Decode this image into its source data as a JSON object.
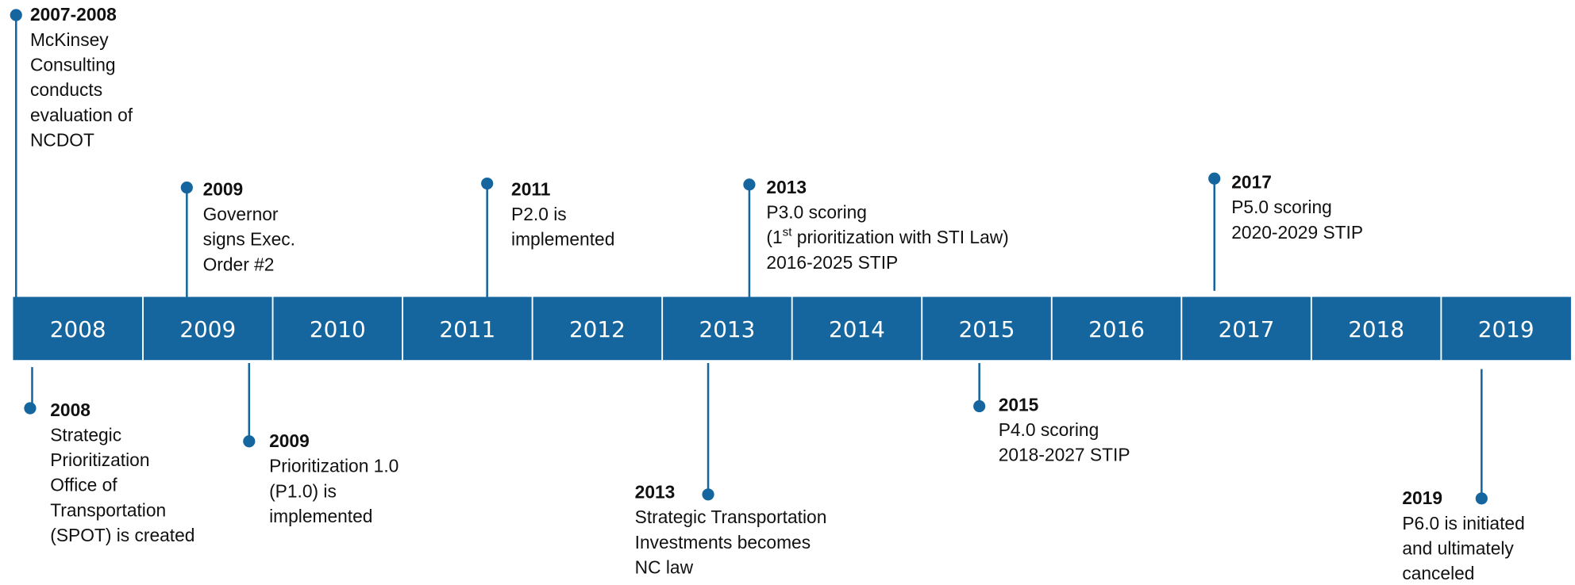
{
  "timeline": {
    "years": [
      "2008",
      "2009",
      "2010",
      "2011",
      "2012",
      "2013",
      "2014",
      "2015",
      "2016",
      "2017",
      "2018",
      "2019"
    ],
    "events": [
      {
        "year": "2007-2008",
        "lines": [
          "McKinsey",
          "Consulting",
          "conducts",
          "evaluation of",
          "NCDOT"
        ]
      },
      {
        "year": "2009",
        "lines": [
          "Governor",
          "signs Exec.",
          "Order #2"
        ]
      },
      {
        "year": "2011",
        "lines": [
          "P2.0 is",
          "implemented"
        ]
      },
      {
        "year": "2013",
        "lines": [
          "P3.0 scoring",
          [
            "(1",
            "st",
            " prioritization with STI Law)"
          ],
          "2016-2025 STIP"
        ]
      },
      {
        "year": "2017",
        "lines": [
          "P5.0 scoring",
          "2020-2029 STIP"
        ]
      },
      {
        "year": "2008",
        "lines": [
          "Strategic",
          "Prioritization",
          "Office of",
          "Transportation",
          "(SPOT) is created"
        ]
      },
      {
        "year": "2009",
        "lines": [
          "Prioritization 1.0",
          "(P1.0) is",
          "implemented"
        ]
      },
      {
        "year": "2013",
        "lines": [
          "Strategic Transportation",
          "Investments becomes",
          "NC law"
        ]
      },
      {
        "year": "2015",
        "lines": [
          "P4.0 scoring",
          "2018-2027 STIP"
        ]
      },
      {
        "year": "2019",
        "lines": [
          "P6.0 is initiated",
          "and ultimately",
          "canceled"
        ]
      }
    ]
  }
}
